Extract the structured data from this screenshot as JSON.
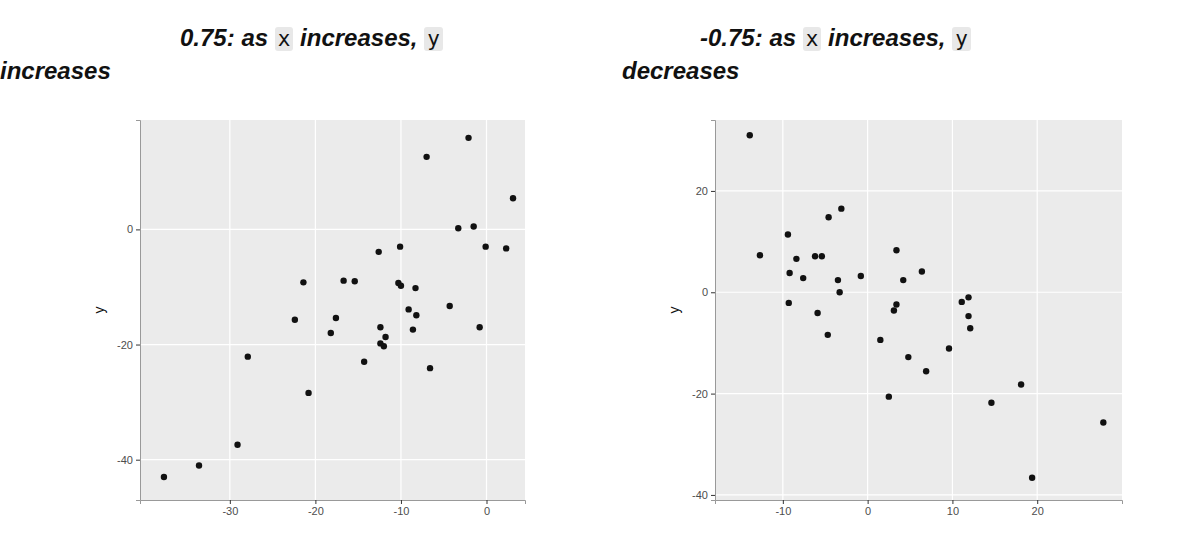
{
  "chart_data": [
    {
      "type": "scatter",
      "title": "0.75: as x increases, y increases",
      "y_label": "y",
      "color": "#111111",
      "grid": true,
      "x": [
        -37.7,
        -33.6,
        -29.1,
        -27.9,
        -22.4,
        -21.4,
        -20.8,
        -18.2,
        -17.6,
        -16.7,
        -15.4,
        -14.3,
        -12.6,
        -12.4,
        -12.4,
        -12.0,
        -11.8,
        -10.3,
        -10.1,
        -10.0,
        -9.1,
        -8.6,
        -8.3,
        -8.2,
        -7.0,
        -6.6,
        -4.3,
        -3.3,
        -2.1,
        -1.5,
        -0.8,
        -0.1,
        2.3,
        3.1
      ],
      "values": [
        -43.0,
        -41.0,
        -37.4,
        -22.1,
        -15.7,
        -9.2,
        -28.4,
        -18.0,
        -15.4,
        -8.9,
        -9.0,
        -23.0,
        -3.9,
        -17.0,
        -19.8,
        -20.3,
        -18.7,
        -9.3,
        -3.0,
        -9.8,
        -13.9,
        -17.4,
        -10.2,
        -14.9,
        12.6,
        -24.1,
        -13.3,
        0.2,
        15.9,
        0.5,
        -17.0,
        -3.0,
        -3.3,
        5.4
      ],
      "xlim": [
        -40.5,
        4.5
      ],
      "xticks": [
        -30,
        -20,
        -10,
        0
      ],
      "ylim": [
        -47,
        19
      ],
      "yticks": [
        -40,
        -20,
        0
      ]
    },
    {
      "type": "scatter",
      "title": "-0.75: as x increases, y decreases",
      "y_label": "y",
      "color": "#111111",
      "grid": true,
      "x": [
        -13.9,
        -12.7,
        -9.4,
        -9.2,
        -9.3,
        -8.4,
        -7.6,
        -6.2,
        -5.9,
        -5.4,
        -4.7,
        -4.6,
        -3.5,
        -3.3,
        -3.1,
        -0.8,
        1.5,
        2.5,
        3.1,
        3.4,
        3.4,
        4.2,
        4.8,
        6.4,
        6.9,
        9.6,
        11.1,
        11.9,
        11.9,
        12.1,
        14.6,
        18.1,
        19.4,
        27.8
      ],
      "values": [
        31.0,
        7.3,
        11.4,
        3.8,
        -2.1,
        6.6,
        2.8,
        7.1,
        -4.1,
        7.1,
        -8.4,
        14.8,
        2.4,
        0.0,
        16.5,
        3.2,
        -9.4,
        -20.6,
        -3.6,
        8.3,
        -2.4,
        2.4,
        -12.8,
        4.1,
        -15.6,
        -11.1,
        -1.9,
        -1.0,
        -4.7,
        -7.1,
        -21.8,
        -18.2,
        -36.6,
        -25.7
      ],
      "xlim": [
        -18,
        30
      ],
      "xticks": [
        -10,
        0,
        10,
        20
      ],
      "ylim": [
        -41,
        34
      ],
      "yticks": [
        -40,
        -20,
        0,
        20
      ]
    }
  ]
}
